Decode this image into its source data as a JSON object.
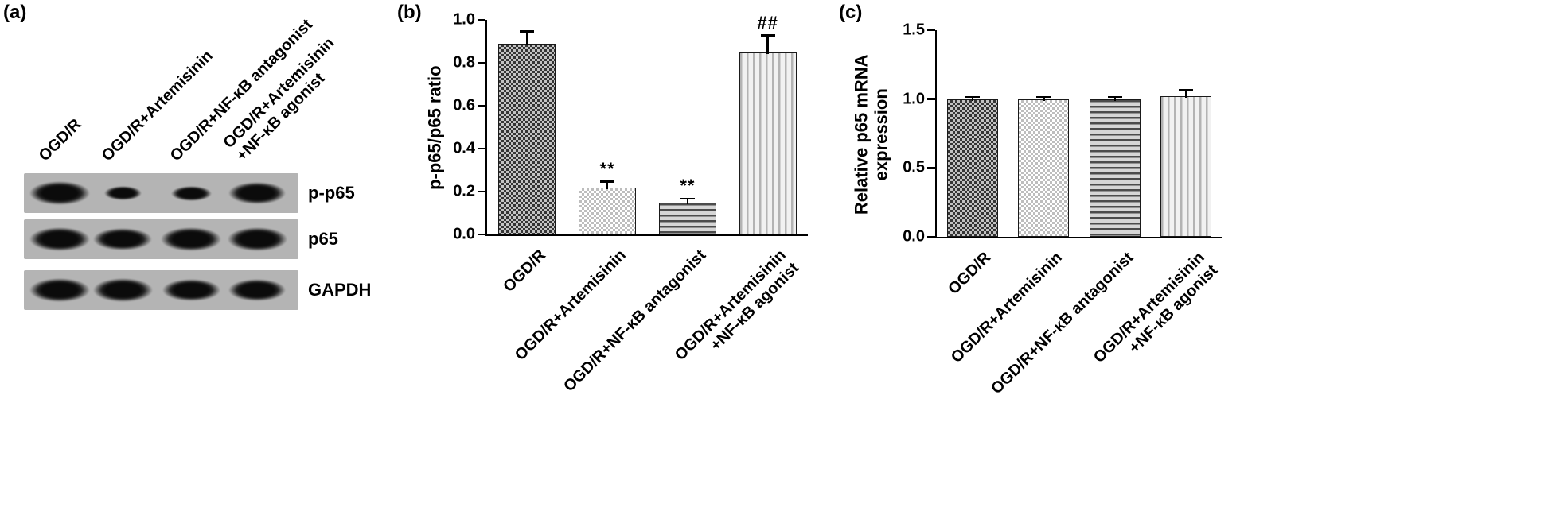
{
  "figure": {
    "panel_a": {
      "letter": "(a)",
      "lane_labels": [
        "OGD/R",
        "OGD/R+Artemisinin",
        "OGD/R+NF-κB antagonist",
        "OGD/R+Artemisinin\n+NF-κB agonist"
      ],
      "rows": [
        {
          "label": "p-p65",
          "bands": [
            1.0,
            0.42,
            0.5,
            0.92
          ]
        },
        {
          "label": "p65",
          "bands": [
            1.0,
            0.95,
            1.0,
            0.98
          ]
        },
        {
          "label": "GAPDH",
          "bands": [
            1.0,
            0.98,
            0.95,
            0.92
          ]
        }
      ]
    },
    "panel_b": {
      "letter": "(b)"
    },
    "panel_c": {
      "letter": "(c)"
    }
  },
  "chart_data": [
    {
      "type": "bar",
      "panel": "b",
      "title": "",
      "ylabel": "p-p65/p65 ratio",
      "xlabel": "",
      "categories": [
        "OGD/R",
        "OGD/R+Artemisinin",
        "OGD/R+NF-κB antagonist",
        "OGD/R+Artemisinin\n+NF-κB agonist"
      ],
      "values": [
        0.89,
        0.22,
        0.15,
        0.85
      ],
      "errors": [
        0.06,
        0.03,
        0.02,
        0.08
      ],
      "annotations": [
        "",
        "**",
        "**",
        "##"
      ],
      "ylim": [
        0,
        1.0
      ],
      "yticks": [
        0,
        0.2,
        0.4,
        0.6,
        0.8,
        1.0
      ],
      "ytick_labels": [
        "0.0",
        "0.2",
        "0.4",
        "0.6",
        "0.8",
        "1.0"
      ],
      "grid": false,
      "legend": false
    },
    {
      "type": "bar",
      "panel": "c",
      "title": "",
      "ylabel": "Relative p65 mRNA\nexpression",
      "xlabel": "",
      "categories": [
        "OGD/R",
        "OGD/R+Artemisinin",
        "OGD/R+NF-κB antagonist",
        "OGD/R+Artemisinin\n+NF-κB agonist"
      ],
      "values": [
        1.0,
        1.0,
        1.0,
        1.02
      ],
      "errors": [
        0.02,
        0.02,
        0.02,
        0.05
      ],
      "annotations": [
        "",
        "",
        "",
        ""
      ],
      "ylim": [
        0,
        1.5
      ],
      "yticks": [
        0,
        0.5,
        1.0,
        1.5
      ],
      "ytick_labels": [
        "0.0",
        "0.5",
        "1.0",
        "1.5"
      ],
      "grid": false,
      "legend": false
    }
  ]
}
